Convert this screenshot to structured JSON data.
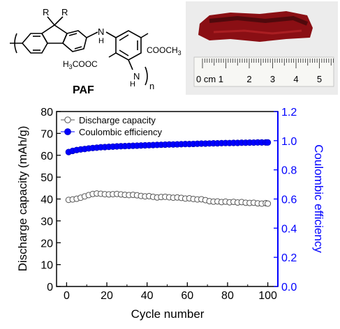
{
  "molecule": {
    "name": "PAF",
    "r_label": "R",
    "nh_label": "N",
    "h_label": "H",
    "sub_n": "n",
    "ester_right": "COOCH",
    "ester_right_sub": "3",
    "ester_left_pre": "H",
    "ester_left_sub": "3",
    "ester_left_post": "COOC"
  },
  "ruler": {
    "unit_label": "0 cm 1",
    "numbers": [
      "2",
      "3",
      "4",
      "5"
    ]
  },
  "colors": {
    "discharge": "#555555",
    "coulombic": "#0000ff",
    "film": "#8a0f14"
  },
  "chart_data": {
    "type": "scatter",
    "xlabel": "Cycle number",
    "ylabel": "Discharge capacity (mAh/g)",
    "y2label": "Coulombic efficiency",
    "xlim": [
      -5,
      105
    ],
    "ylim": [
      0,
      80
    ],
    "y2lim": [
      0,
      1.2
    ],
    "xticks": [
      "0",
      "20",
      "40",
      "60",
      "80",
      "100"
    ],
    "yticks": [
      "0",
      "10",
      "20",
      "30",
      "40",
      "50",
      "60",
      "70",
      "80"
    ],
    "y2ticks": [
      "0.0",
      "0.2",
      "0.4",
      "0.6",
      "0.8",
      "1.0",
      "1.2"
    ],
    "legend_position": "top-left",
    "series": [
      {
        "name": "Discharge capacity",
        "axis": "left",
        "marker": "open-circle",
        "x": [
          1,
          3,
          5,
          7,
          9,
          11,
          13,
          15,
          17,
          19,
          21,
          23,
          25,
          27,
          29,
          31,
          33,
          35,
          37,
          39,
          41,
          43,
          45,
          47,
          49,
          51,
          53,
          55,
          57,
          59,
          61,
          63,
          65,
          67,
          69,
          71,
          73,
          75,
          77,
          79,
          81,
          83,
          85,
          87,
          89,
          91,
          93,
          95,
          97,
          99,
          100
        ],
        "values": [
          39.6,
          39.8,
          40.1,
          40.6,
          41.2,
          41.8,
          42.3,
          42.5,
          42.4,
          42.2,
          42.1,
          42.2,
          42.3,
          42.1,
          41.9,
          41.8,
          41.9,
          41.7,
          41.4,
          41.2,
          41.3,
          41.0,
          40.7,
          40.9,
          41.0,
          40.8,
          40.6,
          40.7,
          40.5,
          40.2,
          40.3,
          40.0,
          39.8,
          39.9,
          39.5,
          39.0,
          38.8,
          38.9,
          38.6,
          38.8,
          38.5,
          38.7,
          38.4,
          38.6,
          38.3,
          38.2,
          38.3,
          38.0,
          37.9,
          38.1,
          37.9
        ]
      },
      {
        "name": "Coulombic efficiency",
        "axis": "right",
        "marker": "filled-circle",
        "x": [
          1,
          3,
          5,
          7,
          9,
          11,
          13,
          15,
          17,
          19,
          21,
          23,
          25,
          27,
          29,
          31,
          33,
          35,
          37,
          39,
          41,
          43,
          45,
          47,
          49,
          51,
          53,
          55,
          57,
          59,
          61,
          63,
          65,
          67,
          69,
          71,
          73,
          75,
          77,
          79,
          81,
          83,
          85,
          87,
          89,
          91,
          93,
          95,
          97,
          99,
          100
        ],
        "values": [
          0.922,
          0.93,
          0.936,
          0.94,
          0.943,
          0.947,
          0.95,
          0.952,
          0.955,
          0.956,
          0.958,
          0.959,
          0.961,
          0.962,
          0.963,
          0.964,
          0.965,
          0.966,
          0.967,
          0.968,
          0.969,
          0.97,
          0.971,
          0.972,
          0.973,
          0.974,
          0.974,
          0.975,
          0.976,
          0.977,
          0.977,
          0.978,
          0.979,
          0.98,
          0.98,
          0.981,
          0.982,
          0.982,
          0.983,
          0.984,
          0.984,
          0.985,
          0.985,
          0.986,
          0.986,
          0.987,
          0.987,
          0.988,
          0.988,
          0.988,
          0.988
        ]
      }
    ]
  }
}
